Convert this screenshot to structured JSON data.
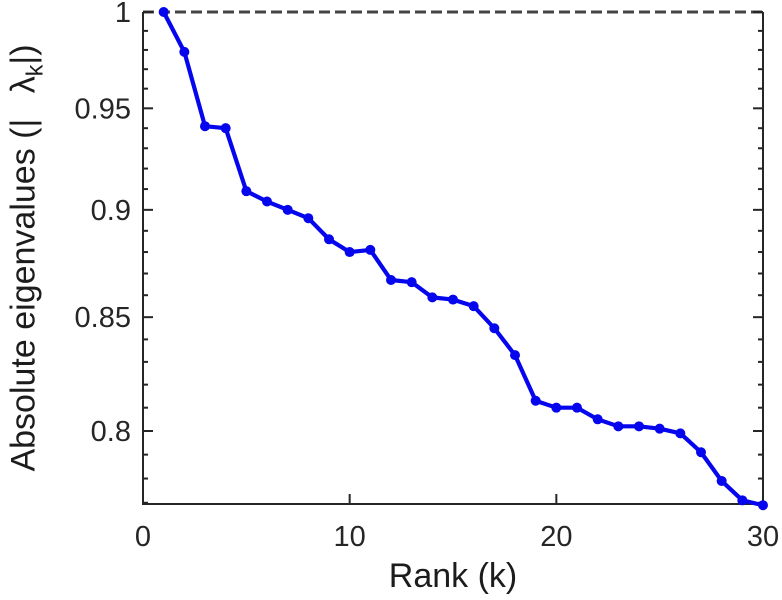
{
  "figure": {
    "background": "#ffffff"
  },
  "chart_data": {
    "type": "line",
    "title": "",
    "xlabel": "Rank (k)",
    "ylabel_parts": {
      "prefix": "Absolute eigenvalues (|",
      "symbol": "λ",
      "subscript": "k",
      "suffix": "|)"
    },
    "x": [
      1,
      2,
      3,
      4,
      5,
      6,
      7,
      8,
      9,
      10,
      11,
      12,
      13,
      14,
      15,
      16,
      17,
      18,
      19,
      20,
      21,
      22,
      23,
      24,
      25,
      26,
      27,
      28,
      29,
      30
    ],
    "series": [
      {
        "name": "absolute-eigenvalues",
        "color": "#0505ee",
        "marker": "circle",
        "values": [
          1.0,
          0.979,
          0.941,
          0.94,
          0.909,
          0.904,
          0.9,
          0.896,
          0.886,
          0.88,
          0.881,
          0.867,
          0.866,
          0.859,
          0.858,
          0.855,
          0.845,
          0.833,
          0.813,
          0.81,
          0.81,
          0.805,
          0.802,
          0.802,
          0.801,
          0.799,
          0.791,
          0.779,
          0.771,
          0.769
        ]
      }
    ],
    "x_ticks": [
      {
        "value": 0,
        "label": "0"
      },
      {
        "value": 10,
        "label": "10"
      },
      {
        "value": 20,
        "label": "20"
      },
      {
        "value": 30,
        "label": "30"
      }
    ],
    "y_ticks": [
      {
        "value": 1.0,
        "label": "1"
      },
      {
        "value": 0.95,
        "label": "0.95"
      },
      {
        "value": 0.9,
        "label": "0.9"
      },
      {
        "value": 0.85,
        "label": "0.85"
      },
      {
        "value": 0.8,
        "label": "0.8"
      }
    ],
    "y_minor_tick_step": 0.01,
    "y_scale": "log",
    "xlim": [
      0,
      30
    ],
    "ylim": [
      0.7695,
      1.0
    ],
    "reference_line": {
      "y": 1.0,
      "style": "dashed",
      "color": "#454545"
    },
    "grid": false,
    "legend": null,
    "axis_color": "#262626"
  }
}
